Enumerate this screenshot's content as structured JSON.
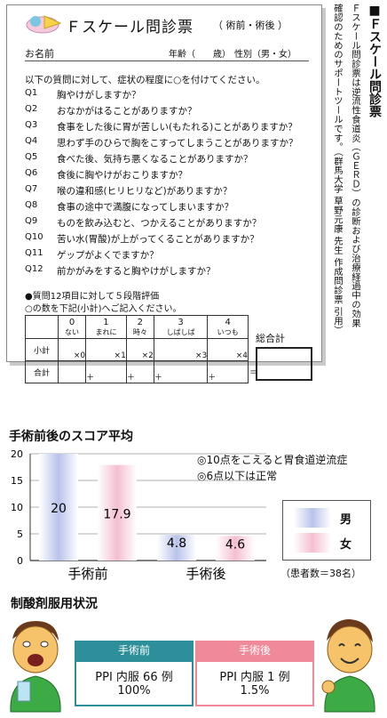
{
  "questionnaire": {
    "title": "Ｆスケール問診票",
    "pre_post": "（ 術前・術後 ）",
    "name_label": "お名前",
    "age_label": "年齢（　　歳）",
    "sex_label": "性別（男・女）",
    "instruction": "以下の質問に対して、症状の程度に○を付けてください。",
    "questions": [
      {
        "no": "Q1",
        "text": "胸やけがしますか？"
      },
      {
        "no": "Q2",
        "text": "おなかがはることがありますか？"
      },
      {
        "no": "Q3",
        "text": "食事をした後に胃が苦しい(もたれる)ことがありますか？"
      },
      {
        "no": "Q4",
        "text": "思わず手のひらで胸をこすってしまうことがありますか？"
      },
      {
        "no": "Q5",
        "text": "食べた後、気持ち悪くなることがありますか？"
      },
      {
        "no": "Q6",
        "text": "食後に胸やけがおこりますか？"
      },
      {
        "no": "Q7",
        "text": "喉の違和感(ヒリヒリなど)がありますか？"
      },
      {
        "no": "Q8",
        "text": "食事の途中で満腹になってしまいますか？"
      },
      {
        "no": "Q9",
        "text": "ものを飲み込むと、つかえることがありますか？"
      },
      {
        "no": "Q10",
        "text": "苦い水(胃酸)が上がってくることがありますか？"
      },
      {
        "no": "Q11",
        "text": "ゲップがよくでますか？"
      },
      {
        "no": "Q12",
        "text": "前かがみをすると胸やけがしますか？"
      }
    ],
    "eval_note1": "●質問12項目に対して５段階評価",
    "eval_note2": "○の数を下記(小計)へご記入ください。",
    "scale": [
      {
        "score": "0",
        "label": "ない",
        "mult": "×0"
      },
      {
        "score": "1",
        "label": "まれに",
        "mult": "×1"
      },
      {
        "score": "2",
        "label": "時々",
        "mult": "×2"
      },
      {
        "score": "3",
        "label": "しばしば",
        "mult": "×3"
      },
      {
        "score": "4",
        "label": "いつも",
        "mult": "×4"
      }
    ],
    "subtotal_label": "小計",
    "total_label": "合計",
    "plus": "＋",
    "equals": "＝",
    "grand_total_label": "総合計"
  },
  "side_caption": {
    "heading": "■Ｆスケール問診票",
    "lines": [
      "Ｆスケール問診票は逆流性食道炎（ＧＥＲＤ）の診断および治療経過中の効果",
      "確認のためのサポートツールです。（群馬大学 草野元康 先生 作成問診票 引用）"
    ]
  },
  "chart_data": {
    "type": "bar",
    "title": "手術前後のスコア平均",
    "categories": [
      "手術前",
      "手術後"
    ],
    "series": [
      {
        "name": "男",
        "values": [
          20,
          4.8
        ],
        "color": "#b9c3ea"
      },
      {
        "name": "女",
        "values": [
          17.9,
          4.6
        ],
        "color": "#f4bfd0"
      }
    ],
    "value_labels": [
      [
        "20",
        "4.8"
      ],
      [
        "17.9",
        "4.6"
      ]
    ],
    "ylim": [
      0,
      20
    ],
    "yticks": [
      0,
      5,
      10,
      15,
      20
    ],
    "grid": true,
    "legend": "right",
    "notes": [
      "◎10点をこえると胃食道逆流症",
      "◎6点以下は正常"
    ],
    "patients": "（患者数＝38名）"
  },
  "medication": {
    "title": "制酸剤服用状況",
    "before": {
      "label": "手術前",
      "line1": "PPI 内服 66 例",
      "line2": "100%",
      "color": "#2c8f99"
    },
    "after": {
      "label": "手術後",
      "line1": "PPI 内服 1 例",
      "line2": "1.5%",
      "color": "#f08a9a"
    }
  }
}
